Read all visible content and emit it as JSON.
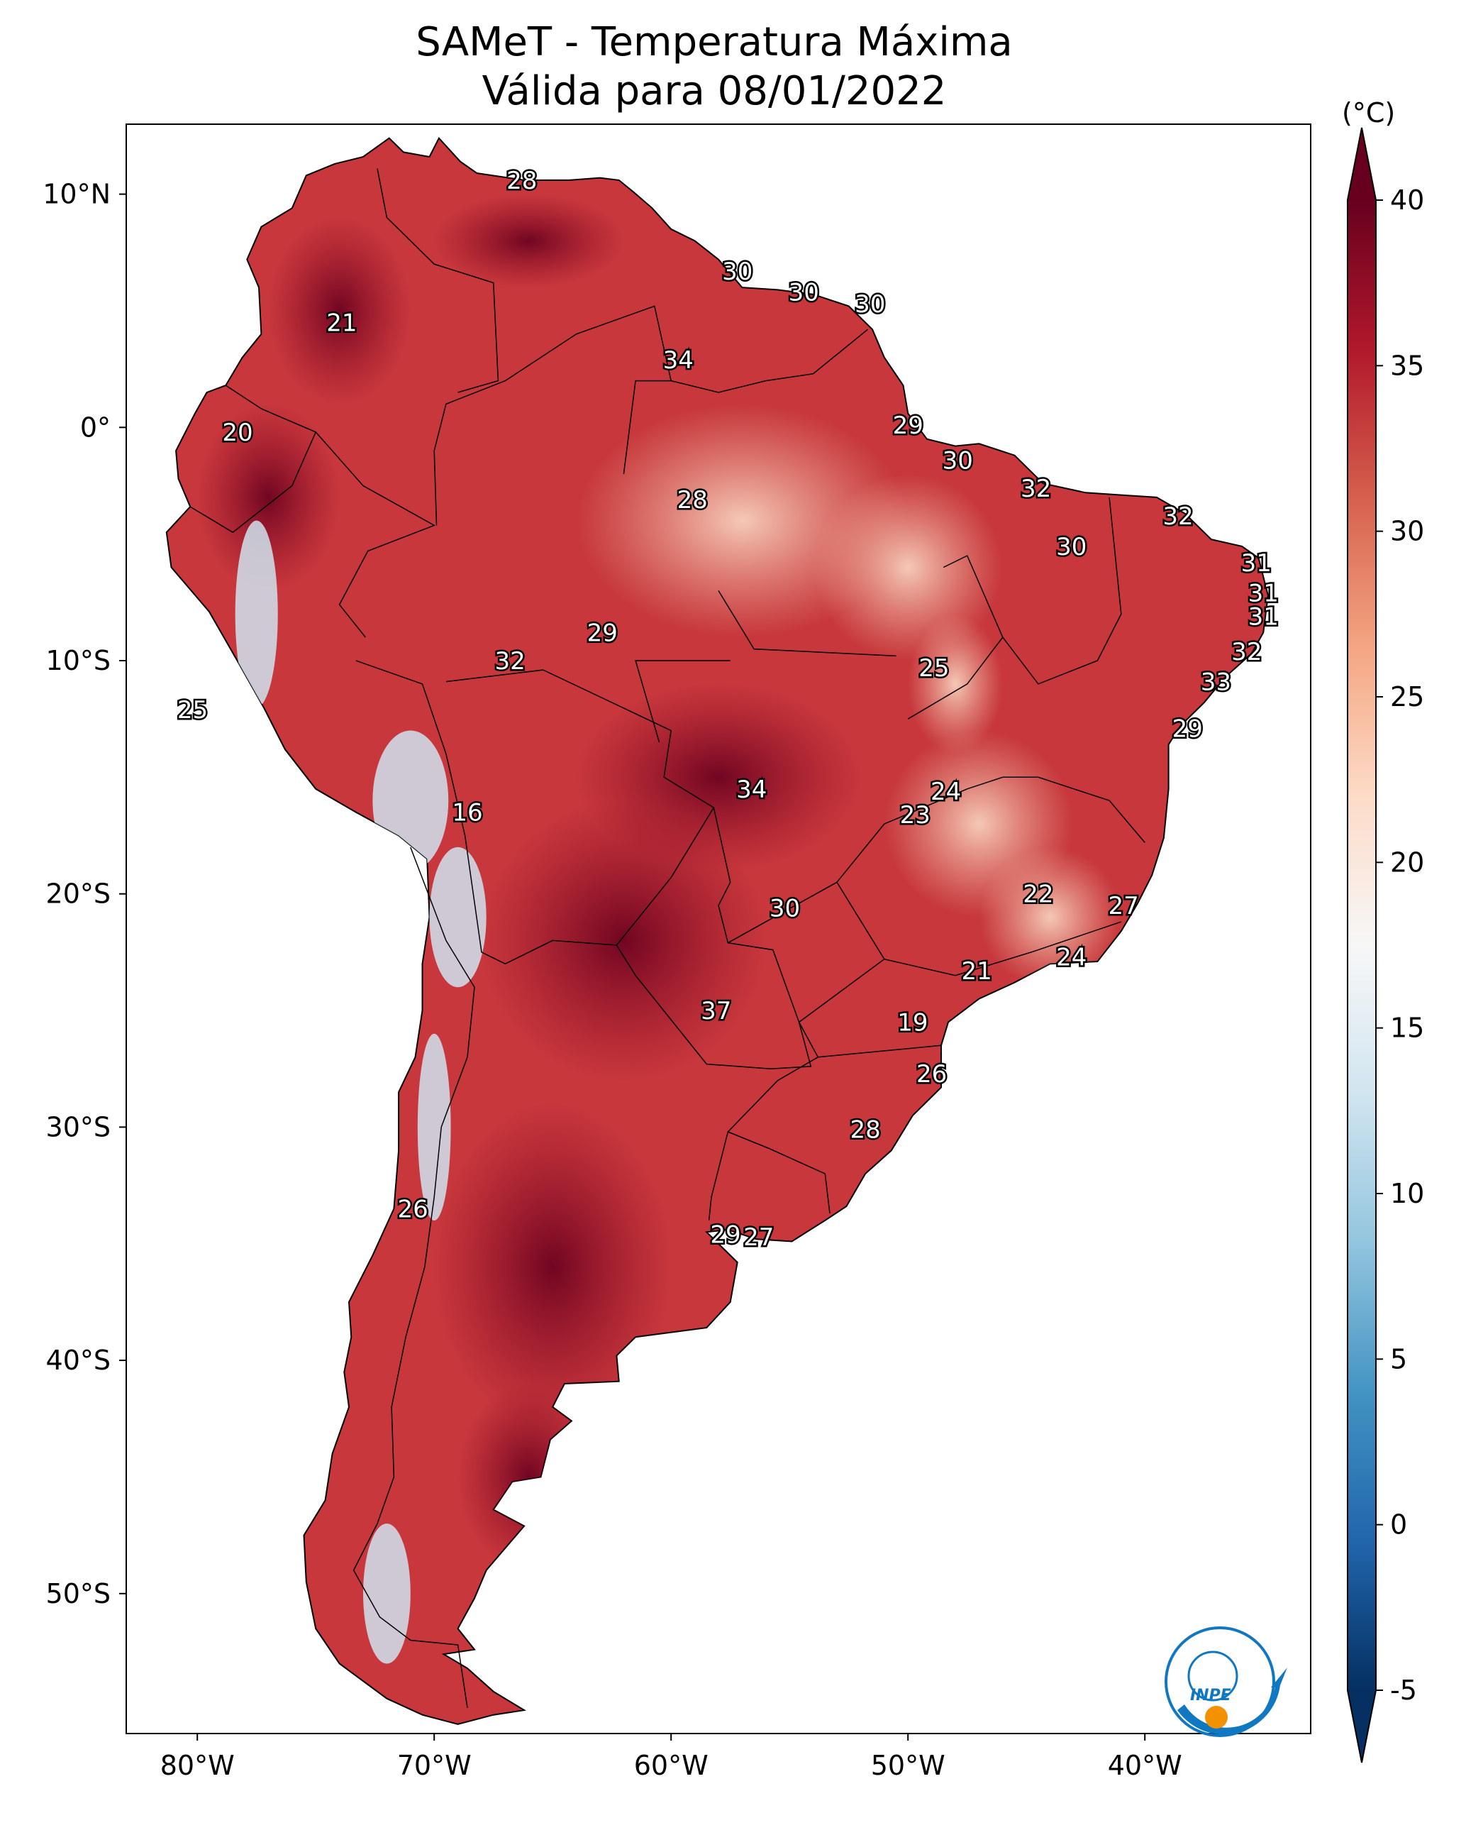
{
  "title": {
    "line1": "SAMeT - Temperatura Máxima",
    "line2": "Válida para 08/01/2022"
  },
  "map": {
    "lon_range": [
      -83,
      -33
    ],
    "lat_range": [
      -56,
      13
    ],
    "lon_ticks": [
      {
        "value": -80,
        "label": "80°W"
      },
      {
        "value": -70,
        "label": "70°W"
      },
      {
        "value": -60,
        "label": "60°W"
      },
      {
        "value": -50,
        "label": "50°W"
      },
      {
        "value": -40,
        "label": "40°W"
      }
    ],
    "lat_ticks": [
      {
        "value": 10,
        "label": "10°N"
      },
      {
        "value": 0,
        "label": "0°"
      },
      {
        "value": -10,
        "label": "10°S"
      },
      {
        "value": -20,
        "label": "20°S"
      },
      {
        "value": -30,
        "label": "30°S"
      },
      {
        "value": -40,
        "label": "40°S"
      },
      {
        "value": -50,
        "label": "50°S"
      }
    ],
    "point_labels": [
      {
        "value": "28",
        "lon": -66.3,
        "lat": 10.6
      },
      {
        "value": "21",
        "lon": -73.9,
        "lat": 4.5
      },
      {
        "value": "20",
        "lon": -78.3,
        "lat": -0.2
      },
      {
        "value": "30",
        "lon": -57.2,
        "lat": 6.7
      },
      {
        "value": "30",
        "lon": -54.4,
        "lat": 5.8
      },
      {
        "value": "30",
        "lon": -51.6,
        "lat": 5.3
      },
      {
        "value": "34",
        "lon": -59.7,
        "lat": 2.9
      },
      {
        "value": "29",
        "lon": -50.0,
        "lat": 0.1
      },
      {
        "value": "30",
        "lon": -47.9,
        "lat": -1.4
      },
      {
        "value": "32",
        "lon": -44.6,
        "lat": -2.6
      },
      {
        "value": "32",
        "lon": -38.6,
        "lat": -3.8
      },
      {
        "value": "28",
        "lon": -59.1,
        "lat": -3.1
      },
      {
        "value": "30",
        "lon": -43.1,
        "lat": -5.1
      },
      {
        "value": "31",
        "lon": -35.3,
        "lat": -5.8
      },
      {
        "value": "31",
        "lon": -35.0,
        "lat": -7.1
      },
      {
        "value": "31",
        "lon": -35.0,
        "lat": -8.1
      },
      {
        "value": "29",
        "lon": -62.9,
        "lat": -8.8
      },
      {
        "value": "32",
        "lon": -35.7,
        "lat": -9.6
      },
      {
        "value": "32",
        "lon": -66.8,
        "lat": -10.0
      },
      {
        "value": "25",
        "lon": -48.9,
        "lat": -10.3
      },
      {
        "value": "33",
        "lon": -37.0,
        "lat": -10.9
      },
      {
        "value": "25",
        "lon": -80.2,
        "lat": -12.1
      },
      {
        "value": "29",
        "lon": -38.2,
        "lat": -12.9
      },
      {
        "value": "34",
        "lon": -56.6,
        "lat": -15.5
      },
      {
        "value": "24",
        "lon": -48.4,
        "lat": -15.6
      },
      {
        "value": "23",
        "lon": -49.7,
        "lat": -16.6
      },
      {
        "value": "16",
        "lon": -68.6,
        "lat": -16.5
      },
      {
        "value": "22",
        "lon": -44.5,
        "lat": -20.0
      },
      {
        "value": "27",
        "lon": -40.9,
        "lat": -20.5
      },
      {
        "value": "30",
        "lon": -55.2,
        "lat": -20.6
      },
      {
        "value": "24",
        "lon": -43.1,
        "lat": -22.7
      },
      {
        "value": "21",
        "lon": -47.1,
        "lat": -23.3
      },
      {
        "value": "37",
        "lon": -58.1,
        "lat": -25.0
      },
      {
        "value": "19",
        "lon": -49.8,
        "lat": -25.5
      },
      {
        "value": "26",
        "lon": -49.0,
        "lat": -27.7
      },
      {
        "value": "28",
        "lon": -51.8,
        "lat": -30.1
      },
      {
        "value": "26",
        "lon": -70.9,
        "lat": -33.5
      },
      {
        "value": "29",
        "lon": -57.7,
        "lat": -34.6
      },
      {
        "value": "27",
        "lon": -56.3,
        "lat": -34.7
      }
    ],
    "logo": {
      "text": "INPE",
      "colors": {
        "blue": "#1078c0",
        "orange": "#f39200"
      }
    }
  },
  "colorbar": {
    "unit": "(°C)",
    "range": [
      -5,
      40
    ],
    "ticks": [
      {
        "value": 40,
        "label": "40"
      },
      {
        "value": 35,
        "label": "35"
      },
      {
        "value": 30,
        "label": "30"
      },
      {
        "value": 25,
        "label": "25"
      },
      {
        "value": 20,
        "label": "20"
      },
      {
        "value": 15,
        "label": "15"
      },
      {
        "value": 10,
        "label": "10"
      },
      {
        "value": 5,
        "label": "5"
      },
      {
        "value": 0,
        "label": "0"
      },
      {
        "value": -5,
        "label": "-5"
      }
    ],
    "colors": [
      "#053061",
      "#2166ac",
      "#4393c3",
      "#92c5de",
      "#d1e5f0",
      "#f7f7f7",
      "#fddbc7",
      "#f4a582",
      "#d6604d",
      "#b2182b",
      "#67001f"
    ]
  }
}
